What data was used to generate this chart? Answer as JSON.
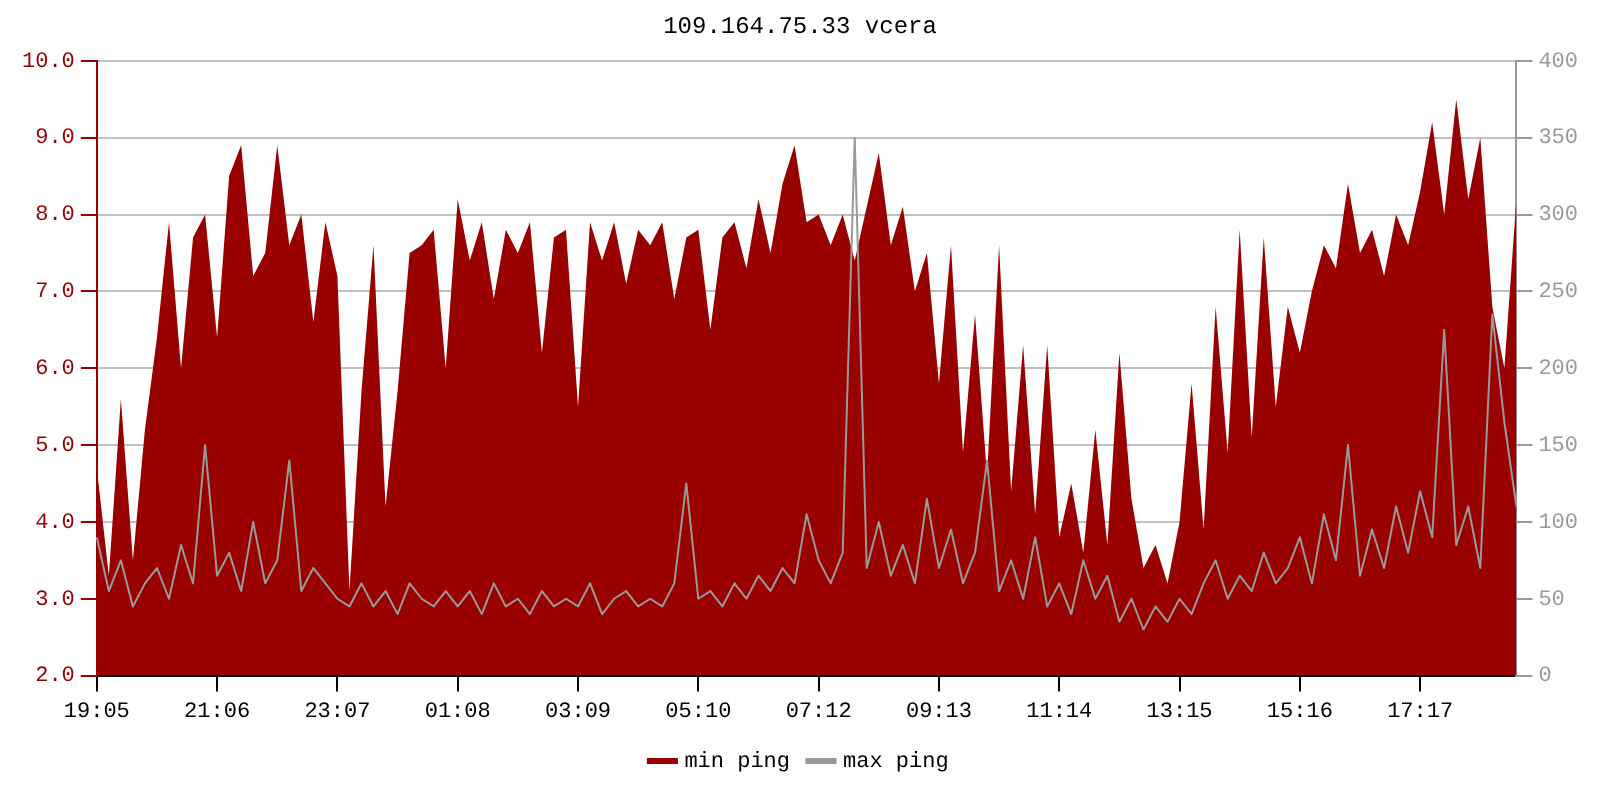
{
  "chart_data": {
    "type": "area",
    "title": "109.164.75.33 vcera",
    "categories": [
      "19:05",
      null,
      null,
      null,
      null,
      null,
      null,
      null,
      null,
      null,
      "21:06",
      null,
      null,
      null,
      null,
      null,
      null,
      null,
      null,
      null,
      "23:07",
      null,
      null,
      null,
      null,
      null,
      null,
      null,
      null,
      null,
      "01:08",
      null,
      null,
      null,
      null,
      null,
      null,
      null,
      null,
      null,
      "03:09",
      null,
      null,
      null,
      null,
      null,
      null,
      null,
      null,
      null,
      "05:10",
      null,
      null,
      null,
      null,
      null,
      null,
      null,
      null,
      null,
      "07:12",
      null,
      null,
      null,
      null,
      null,
      null,
      null,
      null,
      null,
      "09:13",
      null,
      null,
      null,
      null,
      null,
      null,
      null,
      null,
      null,
      "11:14",
      null,
      null,
      null,
      null,
      null,
      null,
      null,
      null,
      null,
      "13:15",
      null,
      null,
      null,
      null,
      null,
      null,
      null,
      null,
      null,
      "15:16",
      null,
      null,
      null,
      null,
      null,
      null,
      null,
      null,
      null,
      "17:17",
      null,
      null,
      null,
      null,
      null,
      null,
      null,
      null
    ],
    "series": [
      {
        "name": "min ping",
        "type": "area",
        "color": "#990000",
        "values": [
          4.7,
          3.3,
          5.6,
          3.5,
          5.2,
          6.4,
          7.9,
          6.0,
          7.7,
          8.0,
          6.4,
          8.5,
          8.9,
          7.2,
          7.5,
          8.9,
          7.6,
          8.0,
          6.6,
          7.9,
          7.2,
          3.1,
          5.7,
          7.6,
          4.2,
          5.7,
          7.5,
          7.6,
          7.8,
          6.0,
          8.2,
          7.4,
          7.9,
          6.9,
          7.8,
          7.5,
          7.9,
          6.2,
          7.7,
          7.8,
          5.5,
          7.9,
          7.4,
          7.9,
          7.1,
          7.8,
          7.6,
          7.9,
          6.9,
          7.7,
          7.8,
          6.5,
          7.7,
          7.9,
          7.3,
          8.2,
          7.5,
          8.4,
          8.9,
          7.9,
          8.0,
          7.6,
          8.0,
          7.4,
          8.1,
          8.8,
          7.6,
          8.1,
          7.0,
          7.5,
          5.8,
          7.6,
          4.9,
          6.7,
          4.6,
          7.6,
          4.4,
          6.3,
          4.1,
          6.3,
          3.8,
          4.5,
          3.6,
          5.2,
          3.7,
          6.2,
          4.3,
          3.4,
          3.7,
          3.2,
          4.0,
          5.8,
          3.9,
          6.8,
          4.9,
          7.8,
          5.1,
          7.7,
          5.5,
          6.8,
          6.2,
          7.0,
          7.6,
          7.3,
          8.4,
          7.5,
          7.8,
          7.2,
          8.0,
          7.6,
          8.3,
          9.2,
          8.0,
          9.5,
          8.2,
          9.0,
          6.8,
          6.0,
          8.2
        ]
      },
      {
        "name": "max ping",
        "type": "line",
        "axis": "y2",
        "color": "#999999",
        "values": [
          90,
          55,
          75,
          45,
          60,
          70,
          50,
          85,
          60,
          150,
          65,
          80,
          55,
          100,
          60,
          75,
          140,
          55,
          70,
          60,
          50,
          45,
          60,
          45,
          55,
          40,
          60,
          50,
          45,
          55,
          45,
          55,
          40,
          60,
          45,
          50,
          40,
          55,
          45,
          50,
          45,
          60,
          40,
          50,
          55,
          45,
          50,
          45,
          60,
          125,
          50,
          55,
          45,
          60,
          50,
          65,
          55,
          70,
          60,
          105,
          75,
          60,
          80,
          350,
          70,
          100,
          65,
          85,
          60,
          115,
          70,
          95,
          60,
          80,
          140,
          55,
          75,
          50,
          90,
          45,
          60,
          40,
          75,
          50,
          65,
          35,
          50,
          30,
          45,
          35,
          50,
          40,
          60,
          75,
          50,
          65,
          55,
          80,
          60,
          70,
          90,
          60,
          105,
          75,
          150,
          65,
          95,
          70,
          110,
          80,
          120,
          90,
          225,
          85,
          110,
          70,
          235,
          165,
          110
        ]
      }
    ],
    "ylim": [
      2,
      10
    ],
    "yticks": [
      {
        "value": 2,
        "label": "2.0"
      },
      {
        "value": 3,
        "label": "3.0"
      },
      {
        "value": 4,
        "label": "4.0"
      },
      {
        "value": 5,
        "label": "5.0"
      },
      {
        "value": 6,
        "label": "6.0"
      },
      {
        "value": 7,
        "label": "7.0"
      },
      {
        "value": 8,
        "label": "8.0"
      },
      {
        "value": 9,
        "label": "9.0"
      },
      {
        "value": 10,
        "label": "10.0"
      }
    ],
    "y2lim": [
      0,
      400
    ],
    "y2ticks": [
      0,
      50,
      100,
      150,
      200,
      250,
      300,
      350,
      400
    ],
    "grid": "y",
    "legend": "bottom",
    "marker": "none",
    "line_style": "solid"
  }
}
